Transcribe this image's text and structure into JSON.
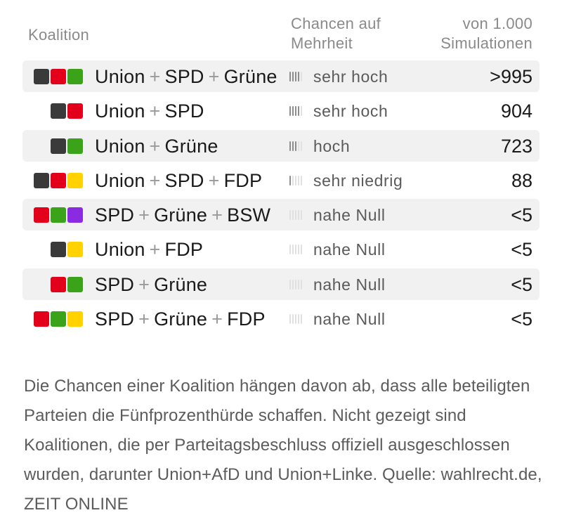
{
  "colors": {
    "union": "#3a3a3a",
    "spd": "#e3001b",
    "gruene": "#3aa31a",
    "fdp": "#ffd200",
    "bsw": "#8a2be2"
  },
  "header": {
    "koalition": "Koalition",
    "chance_line1": "Chancen auf",
    "chance_line2": "Mehrheit",
    "sim_line1": "von 1.000",
    "sim_line2": "Simulationen"
  },
  "rows": [
    {
      "parties": [
        "Union",
        "SPD",
        "Grüne"
      ],
      "swatches": [
        "union",
        "spd",
        "gruene"
      ],
      "chance": "sehr hoch",
      "level": 4,
      "simulations": ">995",
      "shaded": true
    },
    {
      "parties": [
        "Union",
        "SPD"
      ],
      "swatches": [
        "union",
        "spd"
      ],
      "chance": "sehr hoch",
      "level": 4,
      "simulations": "904",
      "shaded": false
    },
    {
      "parties": [
        "Union",
        "Grüne"
      ],
      "swatches": [
        "union",
        "gruene"
      ],
      "chance": "hoch",
      "level": 3,
      "simulations": "723",
      "shaded": true
    },
    {
      "parties": [
        "Union",
        "SPD",
        "FDP"
      ],
      "swatches": [
        "union",
        "spd",
        "fdp"
      ],
      "chance": "sehr niedrig",
      "level": 1,
      "simulations": "88",
      "shaded": false
    },
    {
      "parties": [
        "SPD",
        "Grüne",
        "BSW"
      ],
      "swatches": [
        "spd",
        "gruene",
        "bsw"
      ],
      "chance": "nahe Null",
      "level": 0,
      "simulations": "<5",
      "shaded": true
    },
    {
      "parties": [
        "Union",
        "FDP"
      ],
      "swatches": [
        "union",
        "fdp"
      ],
      "chance": "nahe Null",
      "level": 0,
      "simulations": "<5",
      "shaded": false
    },
    {
      "parties": [
        "SPD",
        "Grüne"
      ],
      "swatches": [
        "spd",
        "gruene"
      ],
      "chance": "nahe Null",
      "level": 0,
      "simulations": "<5",
      "shaded": true
    },
    {
      "parties": [
        "SPD",
        "Grüne",
        "FDP"
      ],
      "swatches": [
        "spd",
        "gruene",
        "fdp"
      ],
      "chance": "nahe Null",
      "level": 0,
      "simulations": "<5",
      "shaded": false
    }
  ],
  "note": "Die Chancen einer Koalition hängen davon ab, dass alle beteiligten Parteien die Fünfprozenthürde schaffen. Nicht gezeigt sind Koalitionen, die per Parteitagsbeschluss offiziell ausgeschlossen wurden, darunter Union+AfD und Union+Linke. Quelle: wahlrecht.de, ZEIT ONLINE"
}
